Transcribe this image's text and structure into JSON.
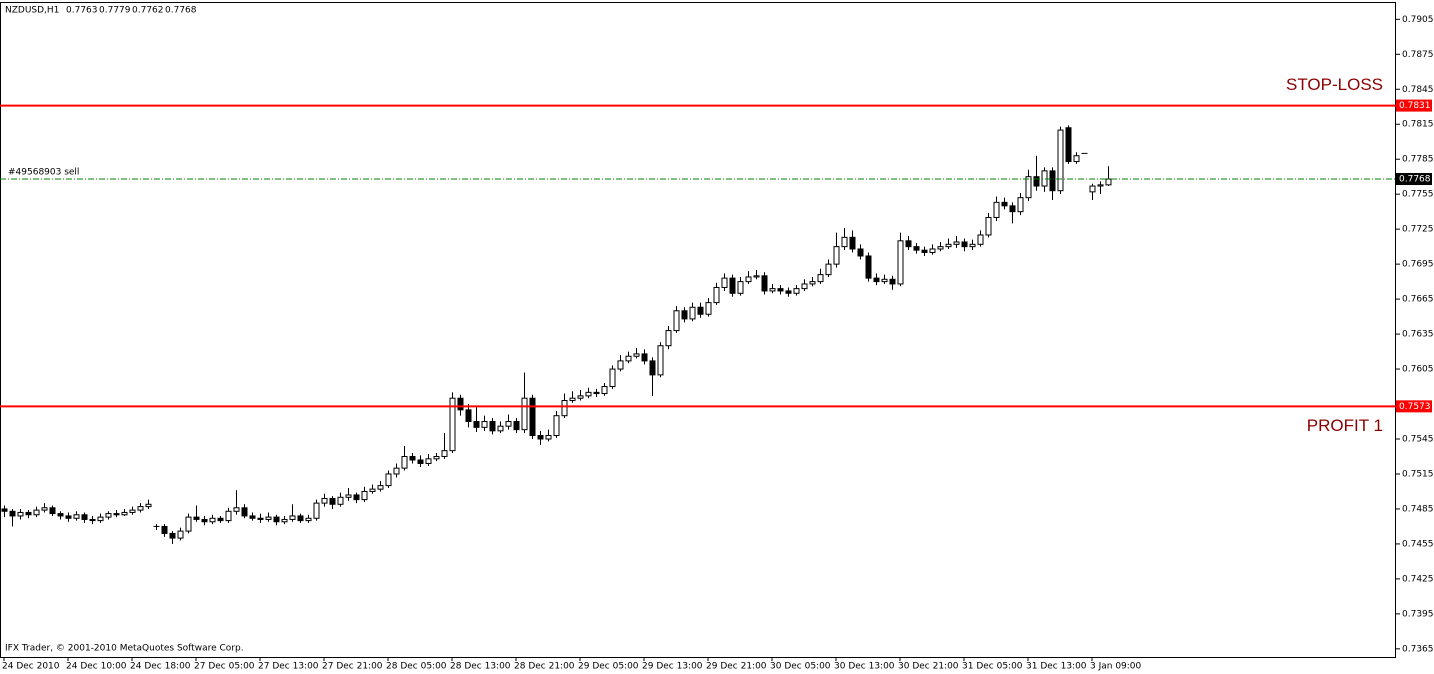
{
  "chart_data": {
    "type": "candlestick",
    "symbol": "NZDUSD,H1",
    "footer": "IFX Trader, © 2001-2010 MetaQuotes Software Corp.",
    "ylim": [
      0.7358,
      0.7919
    ],
    "yticks": [
      0.7905,
      0.7875,
      0.7845,
      0.7815,
      0.7785,
      0.7755,
      0.7725,
      0.7695,
      0.7665,
      0.7635,
      0.7605,
      0.7545,
      0.7515,
      0.7485,
      0.7455,
      0.7425,
      0.7395,
      0.7365
    ],
    "levels": [
      {
        "label": "STOP-LOSS",
        "value": 0.7831,
        "color": "#ff0000"
      },
      {
        "label": "PROFIT 1",
        "value": 0.7573,
        "color": "#ff0000"
      }
    ],
    "order": {
      "label": "#49568903 sell",
      "value": 0.7768,
      "color": "#008000"
    },
    "up_color": "#ffffff",
    "down_color": "#000000",
    "categories": [
      "24 Dec 2010",
      null,
      null,
      null,
      null,
      null,
      null,
      null,
      "24 Dec 10:00",
      null,
      null,
      null,
      null,
      null,
      null,
      null,
      "24 Dec 18:00",
      null,
      null,
      null,
      null,
      null,
      null,
      null,
      "27 Dec 05:00",
      null,
      null,
      null,
      null,
      null,
      null,
      null,
      "27 Dec 13:00",
      null,
      null,
      null,
      null,
      null,
      null,
      null,
      "27 Dec 21:00",
      null,
      null,
      null,
      null,
      null,
      null,
      null,
      "28 Dec 05:00",
      null,
      null,
      null,
      null,
      null,
      null,
      null,
      "28 Dec 13:00",
      null,
      null,
      null,
      null,
      null,
      null,
      null,
      "28 Dec 21:00",
      null,
      null,
      null,
      null,
      null,
      null,
      null,
      "29 Dec 05:00",
      null,
      null,
      null,
      null,
      null,
      null,
      null,
      "29 Dec 13:00",
      null,
      null,
      null,
      null,
      null,
      null,
      null,
      "29 Dec 21:00",
      null,
      null,
      null,
      null,
      null,
      null,
      null,
      "30 Dec 05:00",
      null,
      null,
      null,
      null,
      null,
      null,
      null,
      "30 Dec 13:00",
      null,
      null,
      null,
      null,
      null,
      null,
      null,
      "30 Dec 21:00",
      null,
      null,
      null,
      null,
      null,
      null,
      null,
      "31 Dec 05:00",
      null,
      null,
      null,
      null,
      null,
      null,
      null,
      "31 Dec 13:00",
      null,
      null,
      null,
      null,
      null,
      null,
      null,
      "3 Jan 09:00",
      null,
      null
    ],
    "ohlc": [
      [
        0.7485,
        0.7488,
        0.7478,
        0.7483
      ],
      [
        0.7483,
        0.7485,
        0.747,
        0.7479
      ],
      [
        0.7479,
        0.7485,
        0.7476,
        0.7482
      ],
      [
        0.7482,
        0.7484,
        0.7477,
        0.748
      ],
      [
        0.748,
        0.7487,
        0.7478,
        0.7484
      ],
      [
        0.7484,
        0.749,
        0.7482,
        0.7486
      ],
      [
        0.7486,
        0.7488,
        0.7479,
        0.7481
      ],
      [
        0.7481,
        0.7483,
        0.7476,
        0.7479
      ],
      [
        0.7479,
        0.7482,
        0.7474,
        0.7477
      ],
      [
        0.7477,
        0.7483,
        0.7475,
        0.748
      ],
      [
        0.748,
        0.7482,
        0.7473,
        0.7476
      ],
      [
        0.7476,
        0.7479,
        0.7472,
        0.7475
      ],
      [
        0.7475,
        0.7481,
        0.7473,
        0.7478
      ],
      [
        0.7478,
        0.7483,
        0.7476,
        0.7481
      ],
      [
        0.7481,
        0.7484,
        0.7478,
        0.748
      ],
      [
        0.748,
        0.7485,
        0.7479,
        0.7482
      ],
      [
        0.7482,
        0.7487,
        0.748,
        0.7484
      ],
      [
        0.7484,
        0.749,
        0.7482,
        0.7487
      ],
      [
        0.7487,
        0.7493,
        0.7485,
        0.7489
      ],
      [
        0.747,
        0.7472,
        0.7467,
        0.747
      ],
      [
        0.747,
        0.7472,
        0.7461,
        0.7464
      ],
      [
        0.7464,
        0.7466,
        0.7455,
        0.746
      ],
      [
        0.746,
        0.7469,
        0.7458,
        0.7466
      ],
      [
        0.7466,
        0.7481,
        0.7464,
        0.7478
      ],
      [
        0.7478,
        0.7488,
        0.7474,
        0.7476
      ],
      [
        0.7476,
        0.7479,
        0.7471,
        0.7474
      ],
      [
        0.7474,
        0.748,
        0.7472,
        0.7477
      ],
      [
        0.7477,
        0.7479,
        0.7473,
        0.7475
      ],
      [
        0.7475,
        0.7486,
        0.7473,
        0.7483
      ],
      [
        0.7483,
        0.7501,
        0.748,
        0.7486
      ],
      [
        0.7486,
        0.7489,
        0.7477,
        0.7479
      ],
      [
        0.7479,
        0.7482,
        0.7475,
        0.7477
      ],
      [
        0.7477,
        0.7481,
        0.7473,
        0.7476
      ],
      [
        0.7476,
        0.7482,
        0.7474,
        0.7478
      ],
      [
        0.7478,
        0.748,
        0.7471,
        0.7474
      ],
      [
        0.7474,
        0.7479,
        0.7472,
        0.7476
      ],
      [
        0.7476,
        0.7489,
        0.7474,
        0.7479
      ],
      [
        0.7479,
        0.7481,
        0.7473,
        0.7475
      ],
      [
        0.7475,
        0.748,
        0.7473,
        0.7477
      ],
      [
        0.7477,
        0.7493,
        0.7475,
        0.749
      ],
      [
        0.749,
        0.7498,
        0.7487,
        0.7494
      ],
      [
        0.7494,
        0.7496,
        0.7485,
        0.7489
      ],
      [
        0.7489,
        0.7499,
        0.7487,
        0.7495
      ],
      [
        0.7495,
        0.7503,
        0.7492,
        0.7497
      ],
      [
        0.7497,
        0.7499,
        0.749,
        0.7493
      ],
      [
        0.7493,
        0.7504,
        0.7491,
        0.75
      ],
      [
        0.75,
        0.7506,
        0.7498,
        0.7502
      ],
      [
        0.7502,
        0.7509,
        0.75,
        0.7505
      ],
      [
        0.7505,
        0.7518,
        0.7503,
        0.7515
      ],
      [
        0.7515,
        0.7524,
        0.7512,
        0.752
      ],
      [
        0.752,
        0.7539,
        0.7518,
        0.753
      ],
      [
        0.753,
        0.7533,
        0.7524,
        0.7527
      ],
      [
        0.7527,
        0.7531,
        0.7521,
        0.7524
      ],
      [
        0.7524,
        0.7532,
        0.7522,
        0.7528
      ],
      [
        0.7528,
        0.7533,
        0.7526,
        0.753
      ],
      [
        0.753,
        0.755,
        0.7528,
        0.7535
      ],
      [
        0.7535,
        0.7585,
        0.7533,
        0.758
      ],
      [
        0.758,
        0.7583,
        0.7565,
        0.757
      ],
      [
        0.757,
        0.7575,
        0.7555,
        0.756
      ],
      [
        0.756,
        0.7572,
        0.7551,
        0.7555
      ],
      [
        0.7555,
        0.7565,
        0.7552,
        0.756
      ],
      [
        0.756,
        0.7563,
        0.7549,
        0.7552
      ],
      [
        0.7552,
        0.756,
        0.755,
        0.7556
      ],
      [
        0.7556,
        0.7566,
        0.7553,
        0.756
      ],
      [
        0.756,
        0.7563,
        0.755,
        0.7553
      ],
      [
        0.7553,
        0.7602,
        0.755,
        0.758
      ],
      [
        0.758,
        0.7583,
        0.7545,
        0.7548
      ],
      [
        0.7548,
        0.7552,
        0.754,
        0.7545
      ],
      [
        0.7545,
        0.7553,
        0.7543,
        0.7548
      ],
      [
        0.7548,
        0.7569,
        0.7546,
        0.7565
      ],
      [
        0.7565,
        0.7584,
        0.7563,
        0.7578
      ],
      [
        0.7578,
        0.7586,
        0.7576,
        0.758
      ],
      [
        0.758,
        0.7587,
        0.7578,
        0.7582
      ],
      [
        0.7582,
        0.7589,
        0.758,
        0.7585
      ],
      [
        0.7585,
        0.7588,
        0.7581,
        0.7584
      ],
      [
        0.7584,
        0.7593,
        0.7582,
        0.759
      ],
      [
        0.759,
        0.7608,
        0.7588,
        0.7605
      ],
      [
        0.7605,
        0.7617,
        0.7603,
        0.7612
      ],
      [
        0.7612,
        0.762,
        0.761,
        0.7616
      ],
      [
        0.7616,
        0.7623,
        0.7614,
        0.7618
      ],
      [
        0.7618,
        0.7622,
        0.7609,
        0.7612
      ],
      [
        0.7612,
        0.7615,
        0.7582,
        0.76
      ],
      [
        0.76,
        0.7628,
        0.7598,
        0.7625
      ],
      [
        0.7625,
        0.7642,
        0.7622,
        0.7638
      ],
      [
        0.7638,
        0.7659,
        0.7636,
        0.7655
      ],
      [
        0.7655,
        0.7658,
        0.7645,
        0.7648
      ],
      [
        0.7648,
        0.7662,
        0.7646,
        0.7658
      ],
      [
        0.7658,
        0.7662,
        0.7649,
        0.7652
      ],
      [
        0.7652,
        0.7666,
        0.765,
        0.7662
      ],
      [
        0.7662,
        0.7679,
        0.766,
        0.7675
      ],
      [
        0.7675,
        0.7687,
        0.7672,
        0.7683
      ],
      [
        0.7683,
        0.7686,
        0.7667,
        0.767
      ],
      [
        0.767,
        0.7684,
        0.7668,
        0.768
      ],
      [
        0.768,
        0.7689,
        0.7678,
        0.7684
      ],
      [
        0.7684,
        0.769,
        0.7682,
        0.7685
      ],
      [
        0.7685,
        0.7688,
        0.7669,
        0.7672
      ],
      [
        0.7672,
        0.7678,
        0.767,
        0.7674
      ],
      [
        0.7674,
        0.7677,
        0.7669,
        0.7672
      ],
      [
        0.7672,
        0.7675,
        0.7667,
        0.767
      ],
      [
        0.767,
        0.7677,
        0.7668,
        0.7674
      ],
      [
        0.7674,
        0.7682,
        0.7672,
        0.7678
      ],
      [
        0.7678,
        0.7684,
        0.7676,
        0.768
      ],
      [
        0.768,
        0.7691,
        0.7678,
        0.7686
      ],
      [
        0.7686,
        0.7699,
        0.7684,
        0.7695
      ],
      [
        0.7695,
        0.7722,
        0.7692,
        0.771
      ],
      [
        0.771,
        0.7726,
        0.7707,
        0.7718
      ],
      [
        0.7718,
        0.7724,
        0.7705,
        0.7708
      ],
      [
        0.7708,
        0.7712,
        0.7699,
        0.7702
      ],
      [
        0.7702,
        0.7705,
        0.768,
        0.7683
      ],
      [
        0.7683,
        0.7687,
        0.7677,
        0.768
      ],
      [
        0.768,
        0.7686,
        0.7678,
        0.7682
      ],
      [
        0.7682,
        0.7685,
        0.7673,
        0.7678
      ],
      [
        0.7678,
        0.7722,
        0.7676,
        0.7715
      ],
      [
        0.7715,
        0.7719,
        0.7707,
        0.771
      ],
      [
        0.771,
        0.7713,
        0.7704,
        0.7707
      ],
      [
        0.7707,
        0.771,
        0.7702,
        0.7705
      ],
      [
        0.7705,
        0.7712,
        0.7703,
        0.7708
      ],
      [
        0.7708,
        0.7714,
        0.7706,
        0.771
      ],
      [
        0.771,
        0.7717,
        0.7708,
        0.7712
      ],
      [
        0.7712,
        0.7719,
        0.7709,
        0.7714
      ],
      [
        0.7714,
        0.7717,
        0.7706,
        0.771
      ],
      [
        0.771,
        0.7716,
        0.7707,
        0.7712
      ],
      [
        0.7712,
        0.7724,
        0.771,
        0.772
      ],
      [
        0.772,
        0.7739,
        0.7718,
        0.7735
      ],
      [
        0.7735,
        0.7753,
        0.7732,
        0.7748
      ],
      [
        0.7748,
        0.7752,
        0.7742,
        0.7745
      ],
      [
        0.7745,
        0.7748,
        0.773,
        0.774
      ],
      [
        0.774,
        0.7756,
        0.7737,
        0.7752
      ],
      [
        0.7752,
        0.7776,
        0.7749,
        0.777
      ],
      [
        0.777,
        0.7788,
        0.7758,
        0.7762
      ],
      [
        0.7762,
        0.7778,
        0.7757,
        0.7775
      ],
      [
        0.7775,
        0.7778,
        0.775,
        0.7758
      ],
      [
        0.7758,
        0.7813,
        0.7755,
        0.781
      ],
      [
        0.7812,
        0.7814,
        0.7781,
        0.7783
      ],
      [
        0.7783,
        0.7791,
        0.7781,
        0.7788
      ],
      [
        0.779,
        0.779,
        0.779,
        0.779
      ],
      [
        0.7757,
        0.7764,
        0.775,
        0.7762
      ],
      [
        0.7762,
        0.7766,
        0.7755,
        0.7763
      ],
      [
        0.7763,
        0.7779,
        0.7762,
        0.7768
      ]
    ]
  }
}
